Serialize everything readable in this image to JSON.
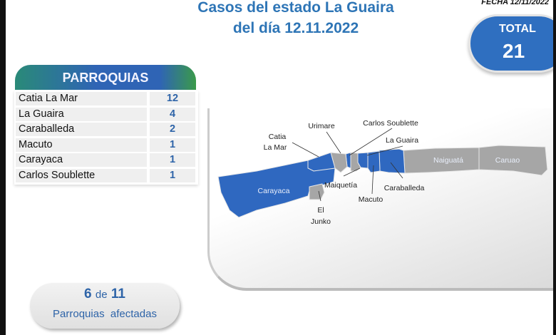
{
  "title": {
    "line1": "Casos del estado La Guaira",
    "line2": "del día 12.11.2022"
  },
  "fecha": "FECHA 12/11/2022",
  "total": {
    "label": "TOTAL",
    "value": "21"
  },
  "parroquias": {
    "header": "PARROQUIAS",
    "rows": [
      {
        "name": "Catia La Mar",
        "value": "12"
      },
      {
        "name": "La Guaira",
        "value": "4"
      },
      {
        "name": "Caraballeda",
        "value": "2"
      },
      {
        "name": "Macuto",
        "value": "1"
      },
      {
        "name": "Carayaca",
        "value": "1"
      },
      {
        "name": "Carlos Soublette",
        "value": "1"
      }
    ]
  },
  "afectadas": {
    "count": "6",
    "de": "de",
    "total": "11",
    "label": "Parroquias  afectadas"
  },
  "map": {
    "colors": {
      "affected": "#2f68c0",
      "unaffected": "#a6a6a6"
    },
    "labels": {
      "catia1": "Catia",
      "catia2": "La Mar",
      "urimare": "Urimare",
      "carlos": "Carlos Soublette",
      "laguaira": "La Guaira",
      "naiguata": "Naiguatá",
      "caruao": "Caruao",
      "carayaca": "Carayaca",
      "maiquetia": "Maiquetía",
      "caraballeda": "Caraballeda",
      "macuto": "Macuto",
      "el": "El",
      "junko": "Junko"
    }
  }
}
